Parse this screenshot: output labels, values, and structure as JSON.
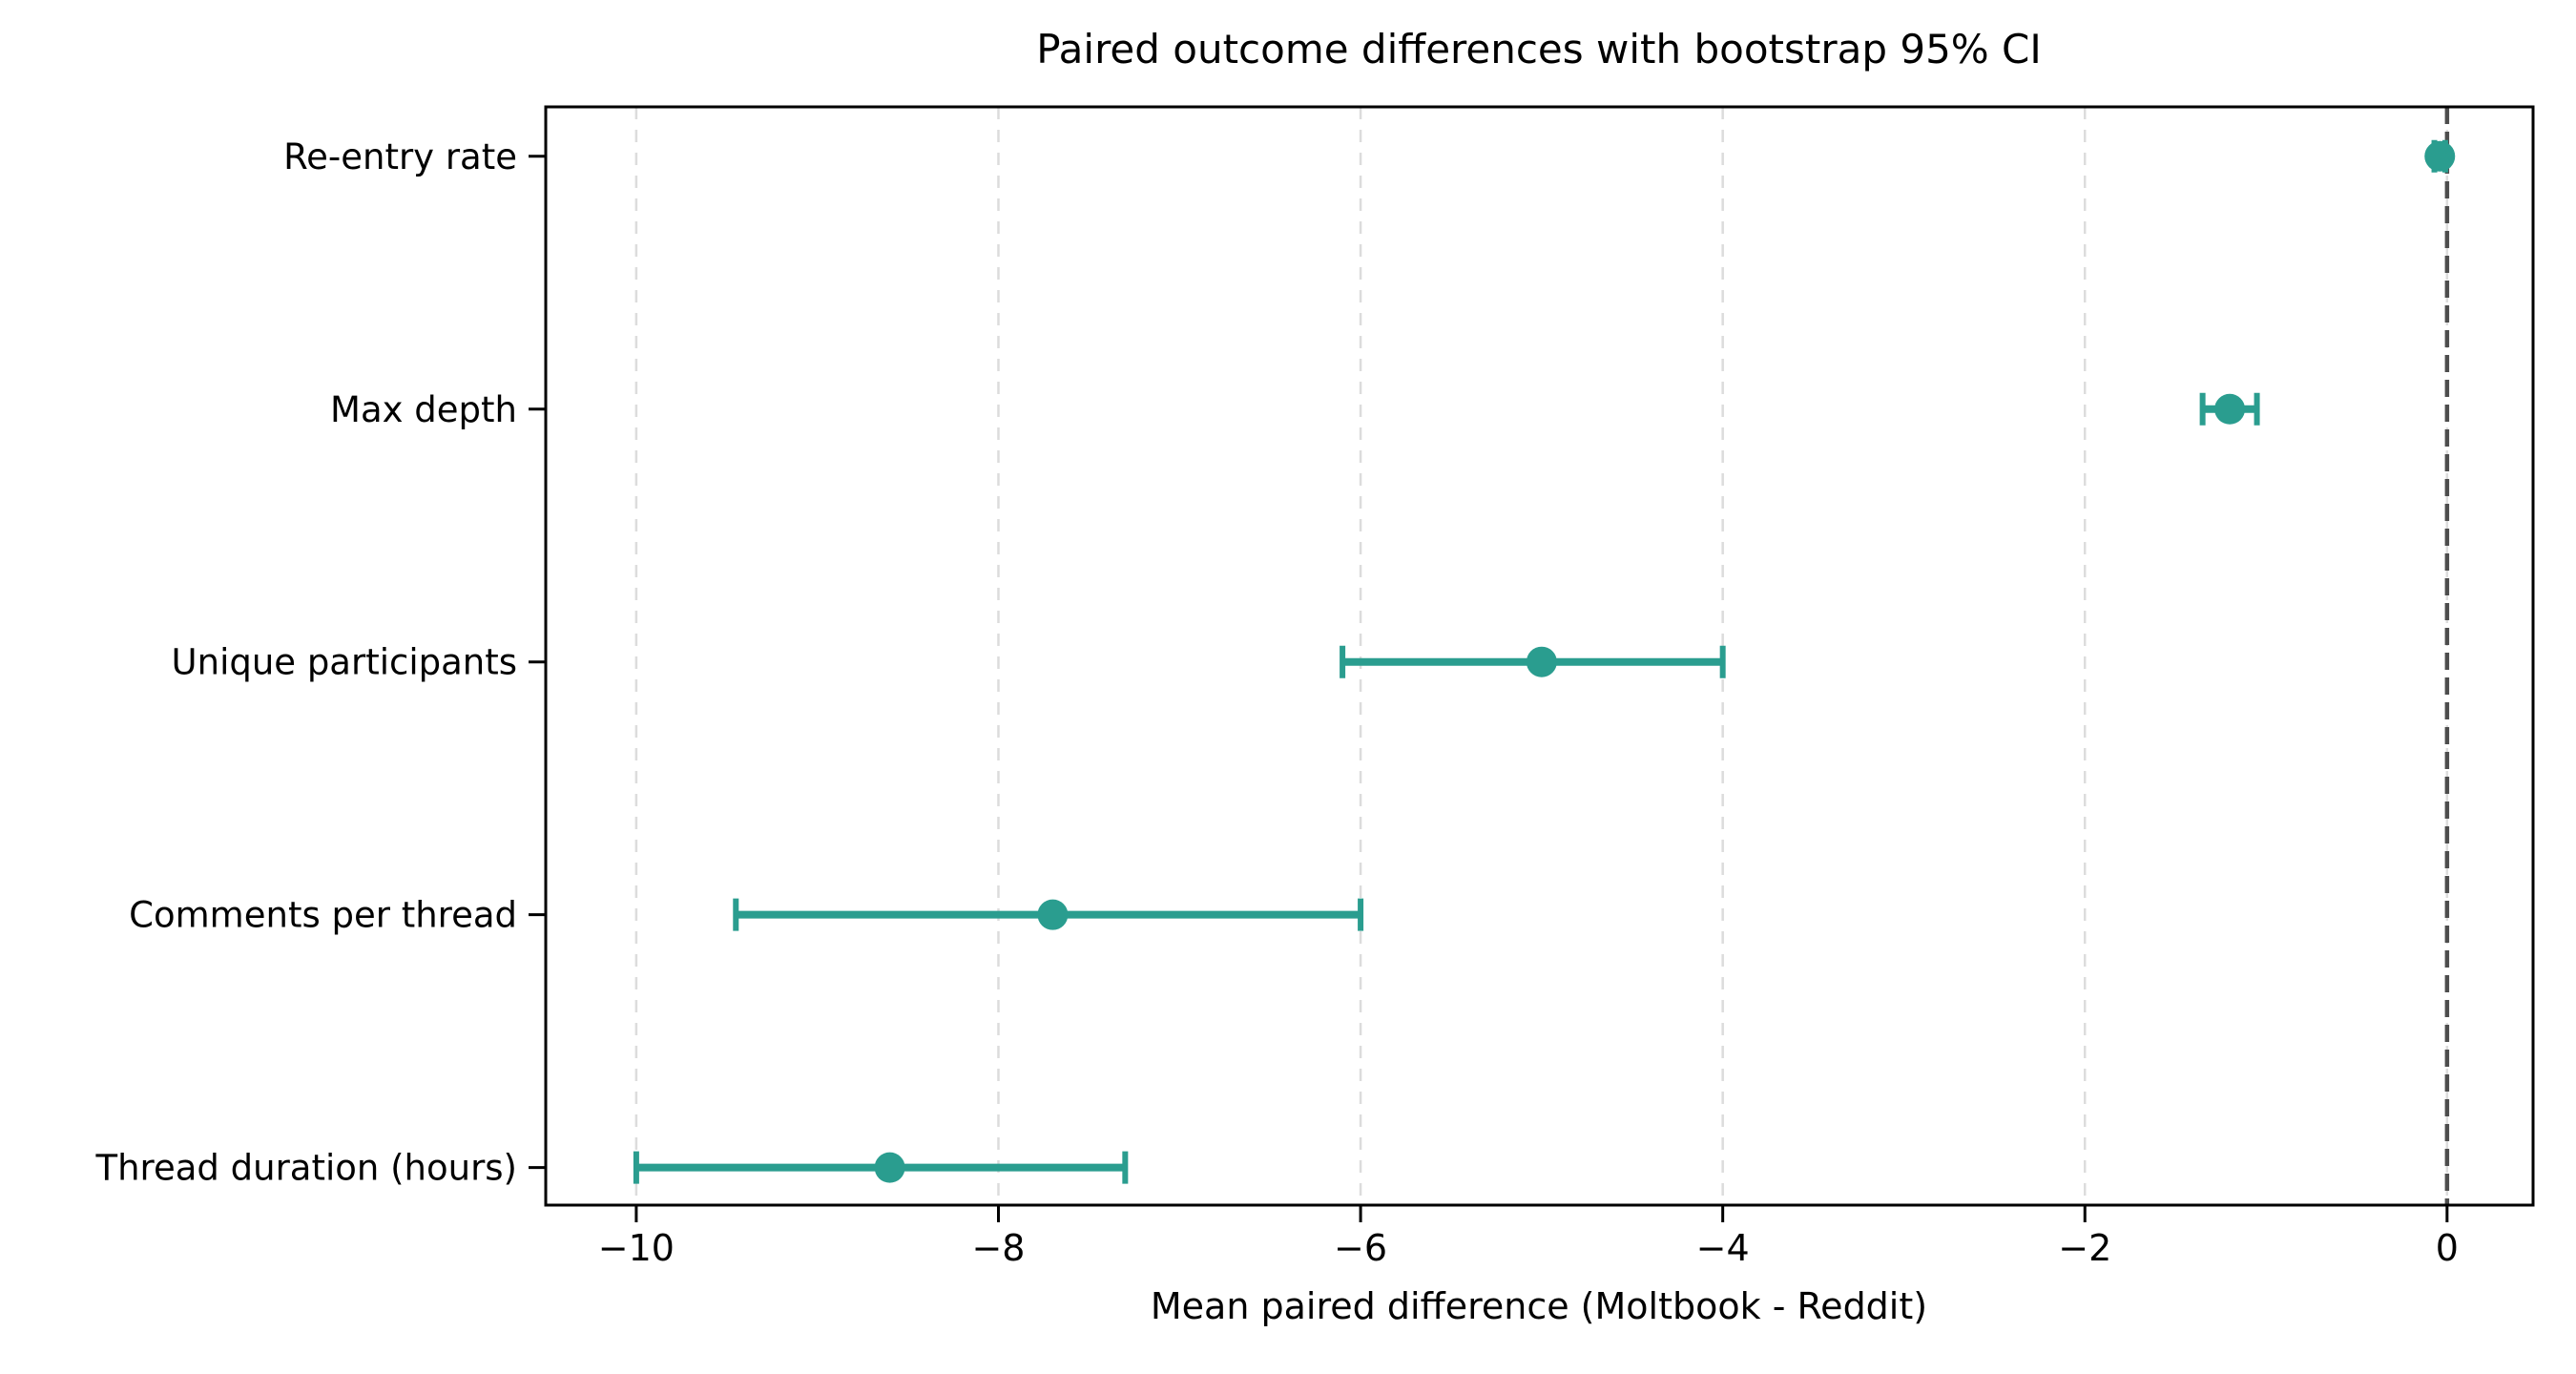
{
  "chart_data": {
    "type": "scatter",
    "subtype": "horizontal-errorbar-dot-plot",
    "title": "Paired outcome differences with bootstrap 95% CI",
    "xlabel": "Mean paired difference (Moltbook - Reddit)",
    "ylabel": "",
    "categories": [
      "Re-entry rate",
      "Max depth",
      "Unique participants",
      "Comments per thread",
      "Thread duration (hours)"
    ],
    "series": [
      {
        "name": "Mean paired difference with bootstrap 95% CI",
        "values": [
          -0.04,
          -1.2,
          -5.0,
          -7.7,
          -8.6
        ],
        "ci_low": [
          -0.07,
          -1.35,
          -6.1,
          -9.45,
          -10.0
        ],
        "ci_high": [
          -0.01,
          -1.05,
          -4.0,
          -6.0,
          -7.3
        ]
      }
    ],
    "xticks": [
      -10,
      -8,
      -6,
      -4,
      -2,
      0
    ],
    "xlim": [
      -10.5,
      0.475
    ],
    "zero_reference_line": 0,
    "grid": "vertical dashed gridlines at each x tick",
    "legend_position": "none",
    "colors": {
      "marker": "#2a9d8f",
      "zero_line": "#4d4d4d",
      "gridline": "#dcdcdc",
      "text": "#000000",
      "background": "#ffffff"
    }
  }
}
